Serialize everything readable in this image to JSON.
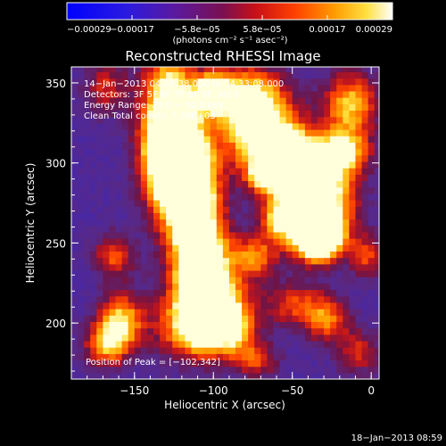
{
  "chart_data": {
    "type": "heatmap",
    "title": "Reconstructed RHESSI Image",
    "xlabel": "Heliocentric X (arcsec)",
    "ylabel": "Heliocentric Y (arcsec)",
    "xlim": [
      -190,
      5
    ],
    "ylim": [
      165,
      360
    ],
    "x_ticks": [
      -150,
      -100,
      -50,
      0
    ],
    "y_ticks": [
      200,
      250,
      300,
      350
    ],
    "x_tick_labels": [
      "−150",
      "−100",
      "−50",
      "0"
    ],
    "y_tick_labels": [
      "200",
      "250",
      "300",
      "350"
    ],
    "colorbar": {
      "range": [
        -0.00029,
        0.00029
      ],
      "tick_labels": [
        "−0.00029",
        "−0.00017",
        "−5.8e−05",
        "5.8e−05",
        "0.00017",
        "0.00029"
      ],
      "unit": "(photons cm⁻² s⁻¹ asec⁻²)"
    },
    "info_lines": [
      "14−Jan−2013 04:28:38.000 to 04:33:08.000",
      "Detectors: 3F 5F 6F 7F 8F 9F, Att 0",
      "Energy Range: 25.0 − 50.0 keV",
      "Clean    Total counts: 7.30E+03"
    ],
    "peak_label": "Position of Peak = [−102,342]",
    "peak": [
      -102,
      342
    ],
    "grid": false
  },
  "footer": {
    "date": "18−Jan−2013 08:59"
  },
  "colors": {
    "background": "#000000",
    "low": "#3a2a9a",
    "mid": "#7a1a6a",
    "high": "#ffd020",
    "peak": "#ffffe0"
  }
}
